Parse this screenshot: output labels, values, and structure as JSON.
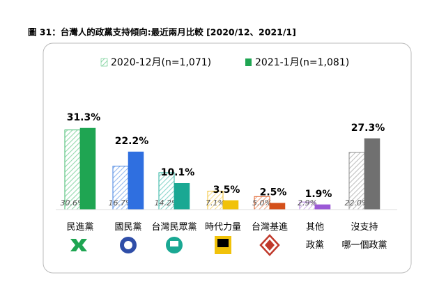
{
  "chart_data": {
    "type": "bar",
    "title": "圖 31：台灣人的政黨支持傾向:最近兩月比較  [2020/12、2021/1]",
    "categories": [
      "民進黨",
      "國民黨",
      "台灣民眾黨",
      "時代力量",
      "台灣基進",
      "其他\n政黨",
      "沒支持\n哪一個政黨"
    ],
    "series": [
      {
        "name": "2020-12月(n=1,071)",
        "hatched": true,
        "colors": [
          "#3cb96a",
          "#3f7fe0",
          "#2bb3a0",
          "#f1c232",
          "#e0602a",
          "#b07de0",
          "#8c8c8c"
        ],
        "values": [
          30.6,
          16.7,
          14.2,
          7.1,
          5.0,
          2.9,
          22.0
        ],
        "value_labels": [
          "30.6%",
          "16.7%",
          "14.2%",
          "7.1%",
          "5.0%",
          "2.9%",
          "22.0%"
        ]
      },
      {
        "name": "2021-1月(n=1,081)",
        "hatched": false,
        "colors": [
          "#1fa552",
          "#2f6fe0",
          "#1aa893",
          "#f1c20a",
          "#d4501a",
          "#9b59d6",
          "#707070"
        ],
        "values": [
          31.3,
          22.2,
          10.1,
          3.5,
          2.5,
          1.9,
          27.3
        ],
        "value_labels": [
          "31.3%",
          "22.2%",
          "10.1%",
          "3.5%",
          "2.5%",
          "1.9%",
          "27.3%"
        ]
      }
    ]
  }
}
